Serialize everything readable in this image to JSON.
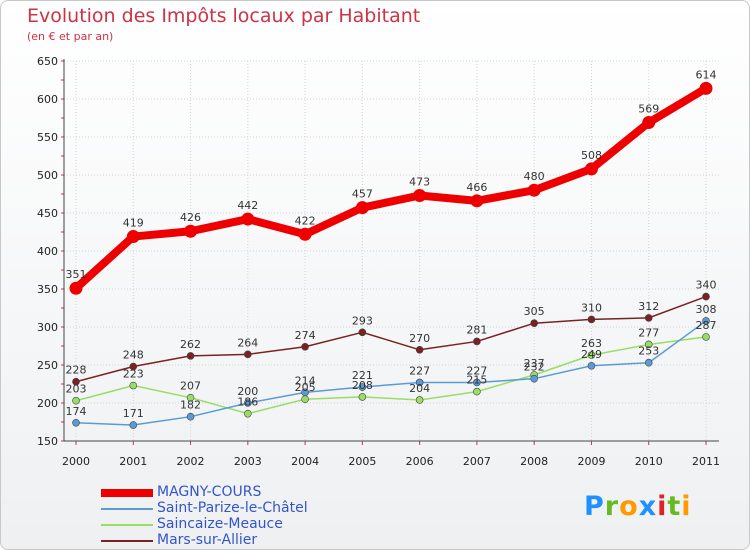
{
  "chart_data": {
    "type": "line",
    "title": "Evolution des Impôts locaux par Habitant",
    "subtitle": "(en € et par an)",
    "xlabel": "",
    "ylabel": "",
    "categories": [
      "2000",
      "2001",
      "2002",
      "2003",
      "2004",
      "2005",
      "2006",
      "2007",
      "2008",
      "2009",
      "2010",
      "2011"
    ],
    "ylim": [
      150,
      650
    ],
    "yticks": [
      150,
      200,
      250,
      300,
      350,
      400,
      450,
      500,
      550,
      600,
      650
    ],
    "grid": true,
    "legend_position": "bottom-left",
    "series": [
      {
        "name": "MAGNY-COURS",
        "color": "#ee0000",
        "values": [
          351,
          419,
          426,
          442,
          422,
          457,
          473,
          466,
          480,
          508,
          569,
          614
        ]
      },
      {
        "name": "Saint-Parize-le-Châtel",
        "color": "#5b9bd5",
        "values": [
          174,
          171,
          182,
          200,
          214,
          221,
          227,
          227,
          232,
          249,
          253,
          308
        ]
      },
      {
        "name": "Saincaize-Meauce",
        "color": "#99dd66",
        "values": [
          203,
          223,
          207,
          186,
          205,
          208,
          204,
          215,
          237,
          263,
          277,
          287
        ]
      },
      {
        "name": "Mars-sur-Allier",
        "color": "#7a2222",
        "values": [
          228,
          248,
          262,
          264,
          274,
          293,
          270,
          281,
          305,
          310,
          312,
          340
        ]
      }
    ]
  },
  "logo": {
    "text": "Proxiti",
    "letters": [
      "P",
      "r",
      "o",
      "x",
      "i",
      "t",
      "i"
    ],
    "colors": [
      "#1e90ff",
      "#66bb22",
      "#ff9900",
      "#1e90ff",
      "#dd2222",
      "#66bb22",
      "#ff9900"
    ]
  }
}
